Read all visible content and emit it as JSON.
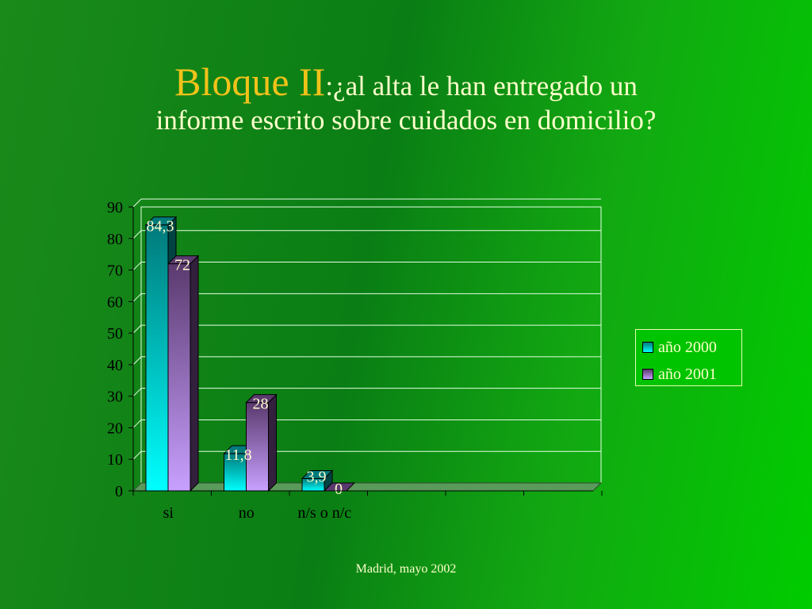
{
  "slide": {
    "title_bold": "Bloque II",
    "title_line1": ":¿al alta le han entregado un",
    "title_line2": "informe escrito sobre cuidados en domicilio?",
    "footer": "Madrid, mayo 2002"
  },
  "chart_data": {
    "type": "bar",
    "categories": [
      "si",
      "no",
      "n/s o n/c"
    ],
    "series": [
      {
        "name": "año 2000",
        "values": [
          84.3,
          11.8,
          3.9
        ],
        "labels": [
          "84,3",
          "11,8",
          "3,9"
        ],
        "color_top": "#007a7a",
        "color_bottom": "#00ffff"
      },
      {
        "name": "año 2001",
        "values": [
          72,
          28,
          0
        ],
        "labels": [
          "72",
          "28",
          "0"
        ],
        "color_top": "#5a3a6e",
        "color_bottom": "#c8a0ff"
      }
    ],
    "y_ticks": [
      "0",
      "10",
      "20",
      "30",
      "40",
      "50",
      "60",
      "70",
      "80",
      "90"
    ],
    "ylim": [
      0,
      90
    ],
    "grid": true,
    "legend_position": "right",
    "title": "",
    "xlabel": "",
    "ylabel": ""
  }
}
